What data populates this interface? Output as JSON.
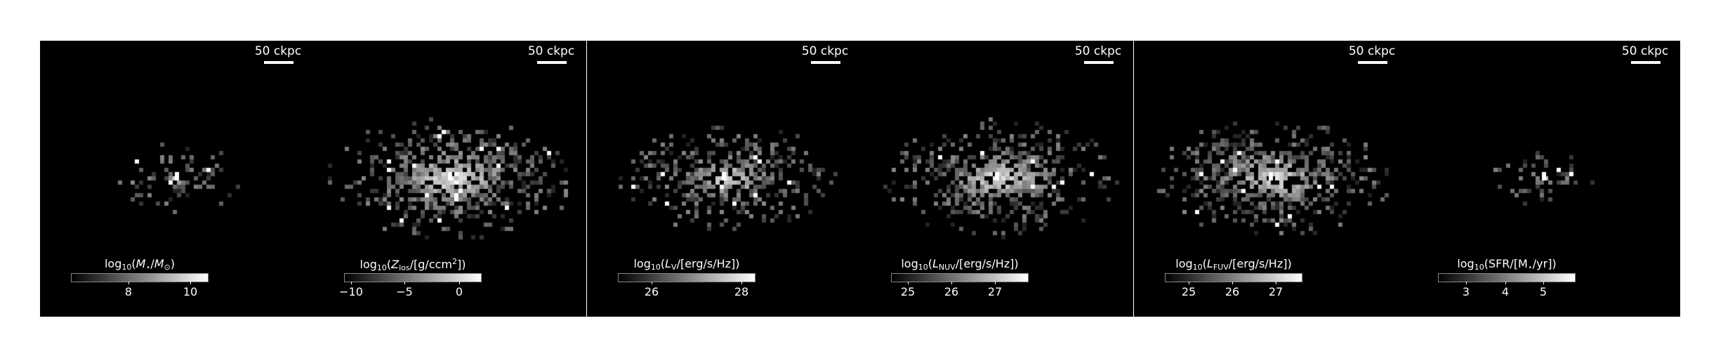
{
  "panels": [
    {
      "id": "stellar-mass",
      "scalebar_label": "50 ckpc",
      "colorbar_label_parts": [
        "log",
        "10",
        "(",
        "M",
        "⋆",
        "/",
        "M",
        "⊙",
        ")"
      ],
      "colorbar_ticks": [
        "8",
        "10"
      ],
      "map": {
        "spread": 0.55,
        "blob_radius": 0.1,
        "density": 0.35,
        "tail": 0.6
      }
    },
    {
      "id": "metallicity",
      "scalebar_label": "50 ckpc",
      "colorbar_label_parts": [
        "log",
        "10",
        "(",
        "Z",
        "los",
        "/[g/ccm",
        "2",
        "])"
      ],
      "colorbar_ticks": [
        "−10",
        "−5",
        "0"
      ],
      "map": {
        "spread": 1.0,
        "blob_radius": 0.22,
        "density": 0.75,
        "tail": 1.0
      }
    },
    {
      "id": "v-band",
      "scalebar_label": "50 ckpc",
      "colorbar_label_parts": [
        "log",
        "10",
        "(",
        "L",
        "V",
        "/[erg/s/Hz])"
      ],
      "colorbar_ticks": [
        "26",
        "28"
      ],
      "map": {
        "spread": 0.9,
        "blob_radius": 0.18,
        "density": 0.6,
        "tail": 0.9
      }
    },
    {
      "id": "nuv",
      "scalebar_label": "50 ckpc",
      "colorbar_label_parts": [
        "log",
        "10",
        "(",
        "L",
        "NUV",
        "/[erg/s/Hz])"
      ],
      "colorbar_ticks": [
        "25",
        "26",
        "27"
      ],
      "map": {
        "spread": 0.95,
        "blob_radius": 0.2,
        "density": 0.7,
        "tail": 0.9
      }
    },
    {
      "id": "fuv",
      "scalebar_label": "50 ckpc",
      "colorbar_label_parts": [
        "log",
        "10",
        "(",
        "L",
        "FUV",
        "/[erg/s/Hz])"
      ],
      "colorbar_ticks": [
        "25",
        "26",
        "27"
      ],
      "map": {
        "spread": 0.95,
        "blob_radius": 0.2,
        "density": 0.7,
        "tail": 0.9
      }
    },
    {
      "id": "sfr",
      "scalebar_label": "50 ckpc",
      "colorbar_label_parts": [
        "log",
        "10",
        "(SFR/[M",
        "⋆",
        "/yr])"
      ],
      "colorbar_ticks": [
        "3",
        "4",
        "5"
      ],
      "map": {
        "spread": 0.45,
        "blob_radius": 0.08,
        "density": 0.3,
        "tail": 0.5
      }
    }
  ]
}
